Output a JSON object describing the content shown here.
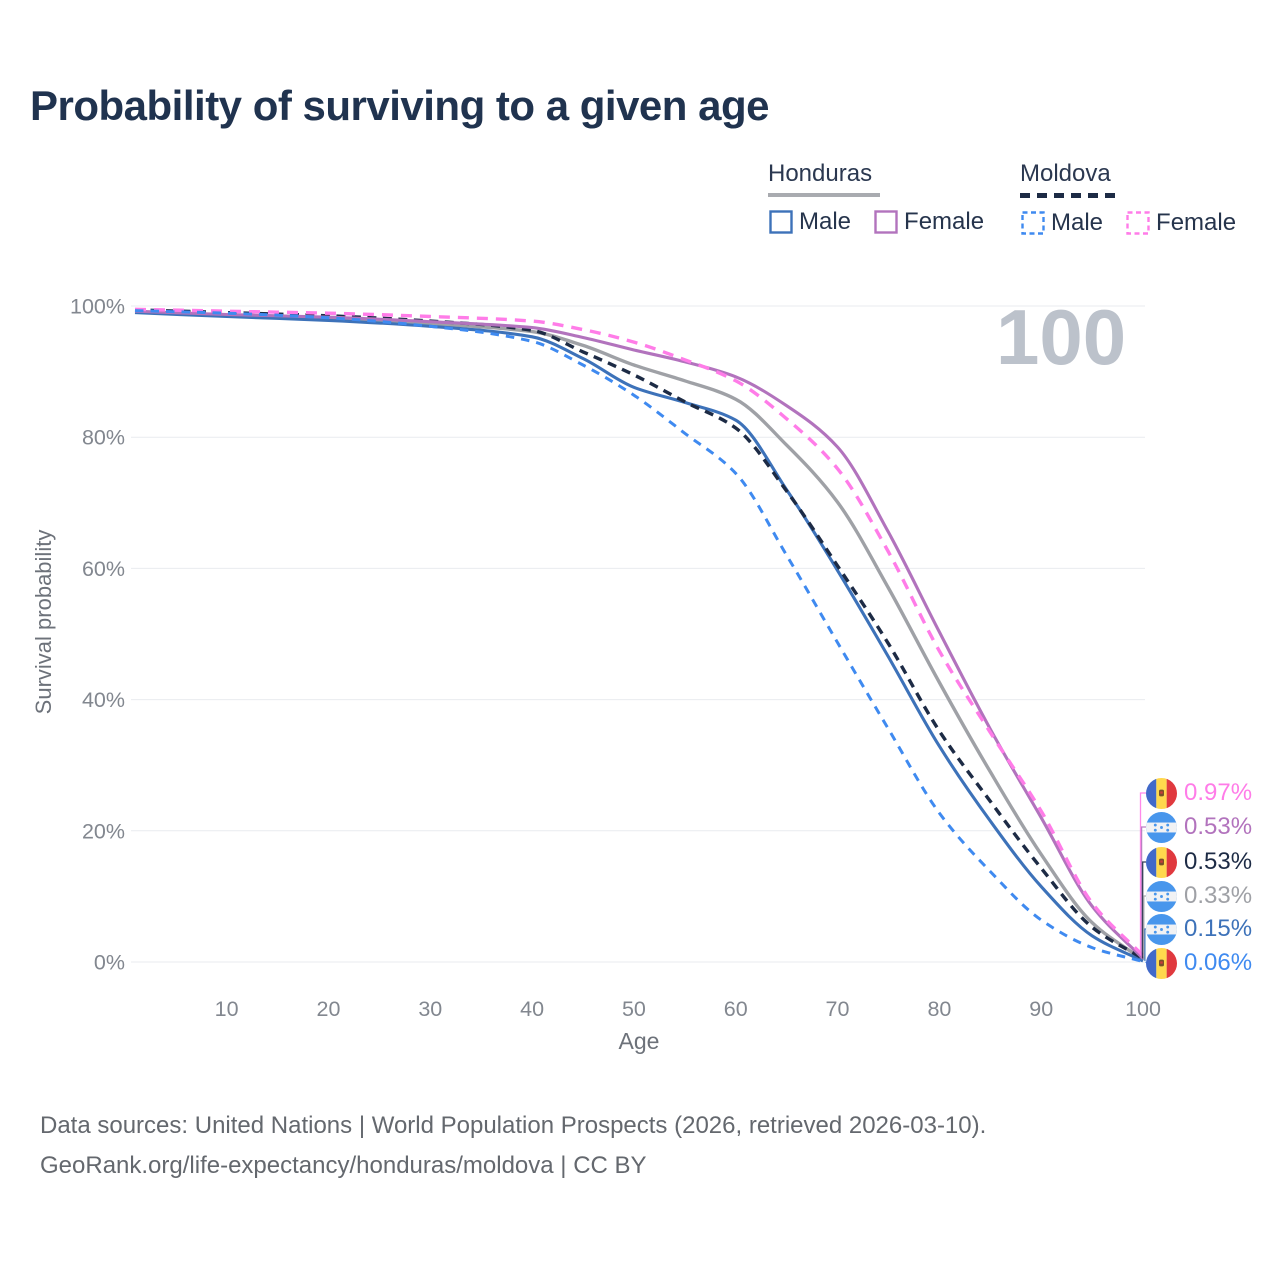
{
  "title": "Probability of surviving to a given age",
  "watermark": "100",
  "legend": {
    "groups": [
      {
        "country": "Honduras",
        "line_style": "solid",
        "underline_color": "#a9abb0",
        "items": [
          {
            "label": "Male",
            "color": "#3d72b9",
            "dashed": false
          },
          {
            "label": "Female",
            "color": "#b273bd",
            "dashed": false
          }
        ]
      },
      {
        "country": "Moldova",
        "line_style": "dashed",
        "underline_color": "#1d2b45",
        "items": [
          {
            "label": "Male",
            "color": "#3f8af0",
            "dashed": true
          },
          {
            "label": "Female",
            "color": "#ff7ce8",
            "dashed": true
          }
        ]
      }
    ]
  },
  "chart_data": {
    "type": "line",
    "title": "Probability of surviving to a given age",
    "xlabel": "Age",
    "ylabel": "Survival probability",
    "xlim": [
      1,
      100
    ],
    "ylim": [
      0,
      100
    ],
    "x_ticks": [
      10,
      20,
      30,
      40,
      50,
      60,
      70,
      80,
      90,
      100
    ],
    "y_tick_labels": [
      "0%",
      "20%",
      "40%",
      "60%",
      "80%",
      "100%"
    ],
    "grid": "horizontal-only",
    "legend_position": "top-right",
    "age_counter": "100",
    "ages": [
      1,
      10,
      20,
      30,
      40,
      45,
      50,
      55,
      60,
      65,
      70,
      75,
      80,
      85,
      90,
      95,
      100
    ],
    "series": [
      {
        "name": "Moldova Female",
        "country": "Moldova",
        "sex": "Female",
        "line": "dashed",
        "color": "#ff7ce8",
        "end_label": "0.97%",
        "values": [
          99.5,
          99.2,
          98.9,
          98.4,
          97.7,
          96.4,
          94.5,
          91.8,
          88.6,
          82.8,
          75.2,
          62.5,
          47.4,
          35.0,
          23.0,
          9.0,
          0.97
        ]
      },
      {
        "name": "Honduras Female",
        "country": "Honduras",
        "sex": "Female",
        "line": "solid",
        "color": "#b273bd",
        "end_label": "0.53%",
        "values": [
          99.2,
          98.7,
          98.3,
          97.6,
          96.7,
          95.2,
          93.3,
          91.5,
          89.2,
          84.8,
          78.5,
          65.5,
          50.3,
          35.5,
          22.0,
          8.5,
          0.53
        ]
      },
      {
        "name": "Moldova Both sexes",
        "country": "Moldova",
        "sex": "Both",
        "line": "dashed",
        "color": "#1d2b45",
        "end_label": "0.53%",
        "values": [
          99.4,
          99.0,
          98.5,
          97.7,
          96.3,
          93.0,
          89.5,
          85.4,
          81.4,
          71.8,
          60.4,
          48.5,
          35.2,
          24.5,
          14.3,
          5.3,
          0.53
        ]
      },
      {
        "name": "Honduras Both sexes",
        "country": "Honduras",
        "sex": "Both",
        "line": "solid",
        "color": "#9fa1a6",
        "end_label": "0.33%",
        "values": [
          99.1,
          98.6,
          98.1,
          97.3,
          96.1,
          94.0,
          91.0,
          88.6,
          85.8,
          78.8,
          70.1,
          57.0,
          42.6,
          29.0,
          16.4,
          6.0,
          0.33
        ]
      },
      {
        "name": "Honduras Male",
        "country": "Honduras",
        "sex": "Male",
        "line": "solid",
        "color": "#3d72b9",
        "end_label": "0.15%",
        "values": [
          99.0,
          98.4,
          97.8,
          96.9,
          95.3,
          92.0,
          87.6,
          85.3,
          82.6,
          72.0,
          59.7,
          46.5,
          32.9,
          21.5,
          11.5,
          4.0,
          0.15
        ]
      },
      {
        "name": "Moldova Male",
        "country": "Moldova",
        "sex": "Male",
        "line": "dashed",
        "color": "#3f8af0",
        "end_label": "0.06%",
        "values": [
          99.3,
          98.9,
          98.2,
          96.9,
          94.6,
          91.0,
          86.4,
          80.6,
          74.5,
          62.0,
          48.7,
          35.5,
          22.7,
          13.8,
          6.4,
          2.2,
          0.06
        ]
      }
    ]
  },
  "footer": {
    "line1": "Data sources: United Nations | World Population Prospects (2026, retrieved 2026-03-10).",
    "line2": "GeoRank.org/life-expectancy/honduras/moldova | CC BY"
  }
}
